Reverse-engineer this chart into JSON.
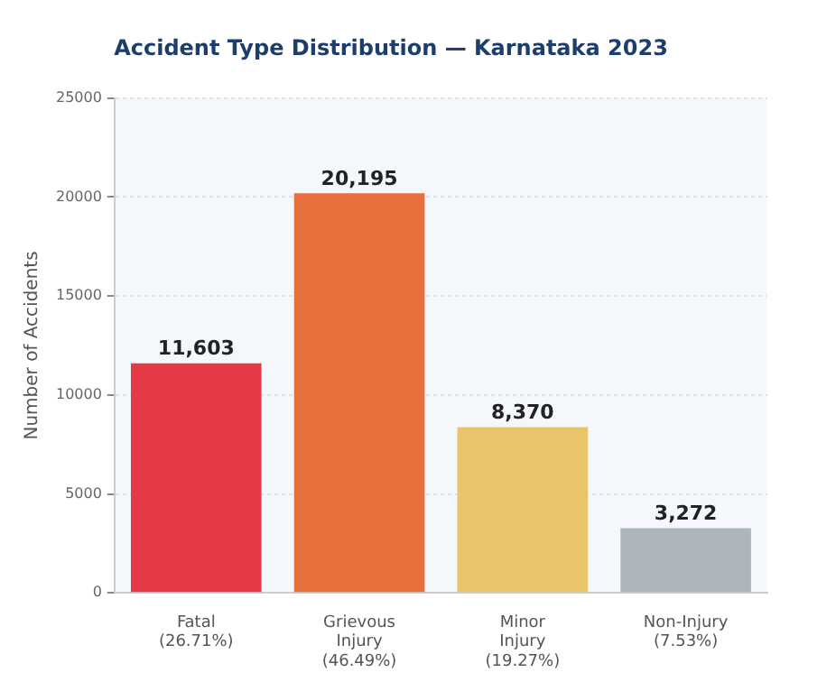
{
  "chart_data": {
    "type": "bar",
    "title": "Accident Type Distribution — Karnataka 2023",
    "ylabel": "Number of Accidents",
    "categories": [
      "Fatal\n(26.71%)",
      "Grievous\nInjury\n(46.49%)",
      "Minor\nInjury\n(19.27%)",
      "Non-Injury\n(7.53%)"
    ],
    "values": [
      11603,
      20195,
      8370,
      3272
    ],
    "colors": [
      "#e63946",
      "#e76f3c",
      "#e9c46a",
      "#adb5bd"
    ],
    "value_labels": [
      "11,603",
      "20,195",
      "8,370",
      "3,272"
    ],
    "ylim": [
      0,
      25000
    ],
    "yticks": [
      0,
      5000,
      10000,
      15000,
      20000,
      25000
    ],
    "grid": "y",
    "legend": false
  }
}
